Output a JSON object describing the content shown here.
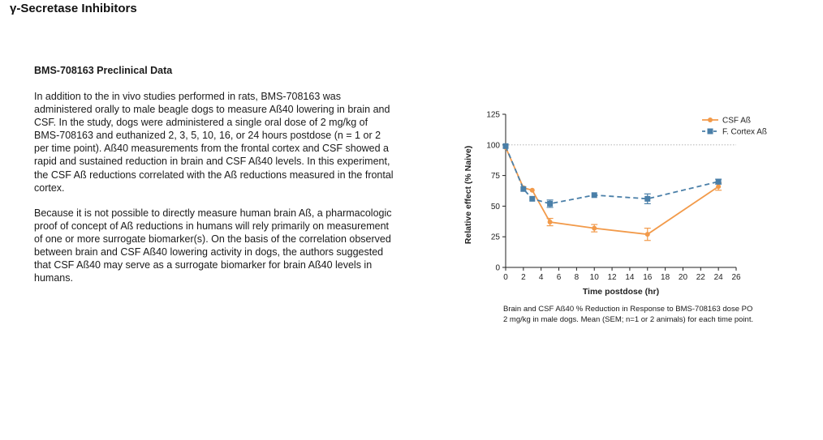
{
  "page": {
    "title": "γ-Secretase Inhibitors",
    "section_heading": "BMS-708163 Preclinical Data",
    "paragraphs": [
      "In addition to the in vivo studies performed in rats, BMS-708163 was administered orally to male beagle dogs to measure Aß40 lowering in brain and CSF. In the study, dogs were administered a single oral dose of 2 mg/kg of BMS-708163 and euthanized 2, 3, 5, 10, 16, or 24 hours postdose (n = 1 or 2 per time point). Aß40 measurements from the frontal cortex and CSF showed a rapid and sustained reduction in brain and CSF Aß40 levels. In this experiment, the CSF Aß reductions correlated with the Aß reductions measured in the frontal cortex.",
      "Because it is not possible to directly measure human brain Aß, a pharmacologic proof of concept of Aß reductions in humans will rely primarily on measurement of one or more surrogate biomarker(s). On the basis of the correlation observed between brain and CSF Aß40 lowering activity in dogs, the authors suggested that CSF Aß40 may serve as a surrogate biomarker for brain Aß40 levels in humans."
    ],
    "caption": "Brain and CSF Aß40 % Reduction in Response to BMS-708163 dose PO 2 mg/kg in male dogs. Mean (SEM; n=1 or 2 animals) for each time point."
  },
  "chart_data": {
    "type": "line",
    "xlabel": "Time postdose (hr)",
    "ylabel": "Relative effect (% Naive)",
    "xlim": [
      0,
      26
    ],
    "ylim": [
      0,
      125
    ],
    "xticks": [
      0,
      2,
      4,
      6,
      8,
      10,
      12,
      14,
      16,
      18,
      20,
      22,
      24,
      26
    ],
    "yticks": [
      0,
      25,
      50,
      75,
      100,
      125
    ],
    "reference_line": 100,
    "legend_position": "top-right",
    "series": [
      {
        "name": "CSF Aß",
        "color": "#f29a4a",
        "marker": "circle",
        "line_style": "solid",
        "x": [
          0,
          2,
          3,
          5,
          10,
          16,
          24
        ],
        "y": [
          98,
          65,
          63,
          37,
          32,
          27,
          66
        ],
        "err": [
          0,
          0,
          0,
          3,
          3,
          5,
          3
        ]
      },
      {
        "name": "F. Cortex Aß",
        "color": "#4a7fa8",
        "marker": "square",
        "line_style": "dashed",
        "x": [
          0,
          2,
          3,
          5,
          10,
          16,
          24
        ],
        "y": [
          99,
          64,
          56,
          52,
          59,
          56,
          70
        ],
        "err": [
          0,
          0,
          0,
          3,
          0,
          4,
          2
        ]
      }
    ]
  }
}
